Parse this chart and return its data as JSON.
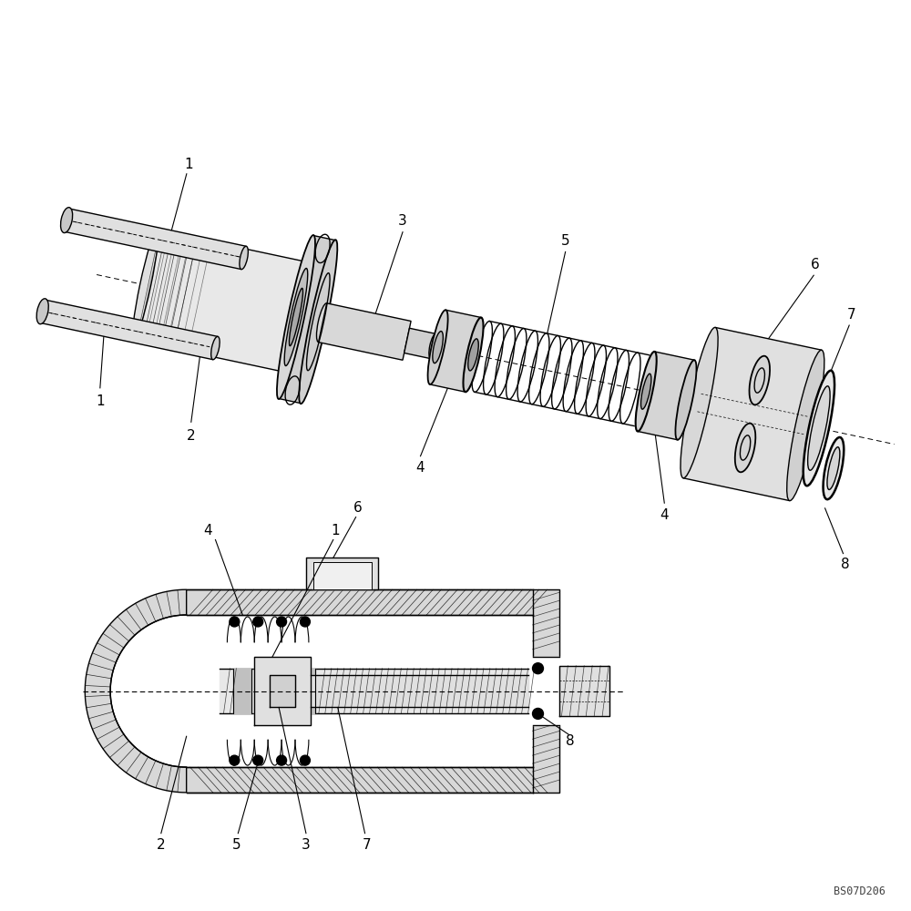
{
  "bg_color": "#ffffff",
  "line_color": "#000000",
  "fig_width": 10.0,
  "fig_height": 10.0,
  "dpi": 100,
  "watermark": "BS07D206",
  "font_size": 11,
  "lw": 1.0
}
